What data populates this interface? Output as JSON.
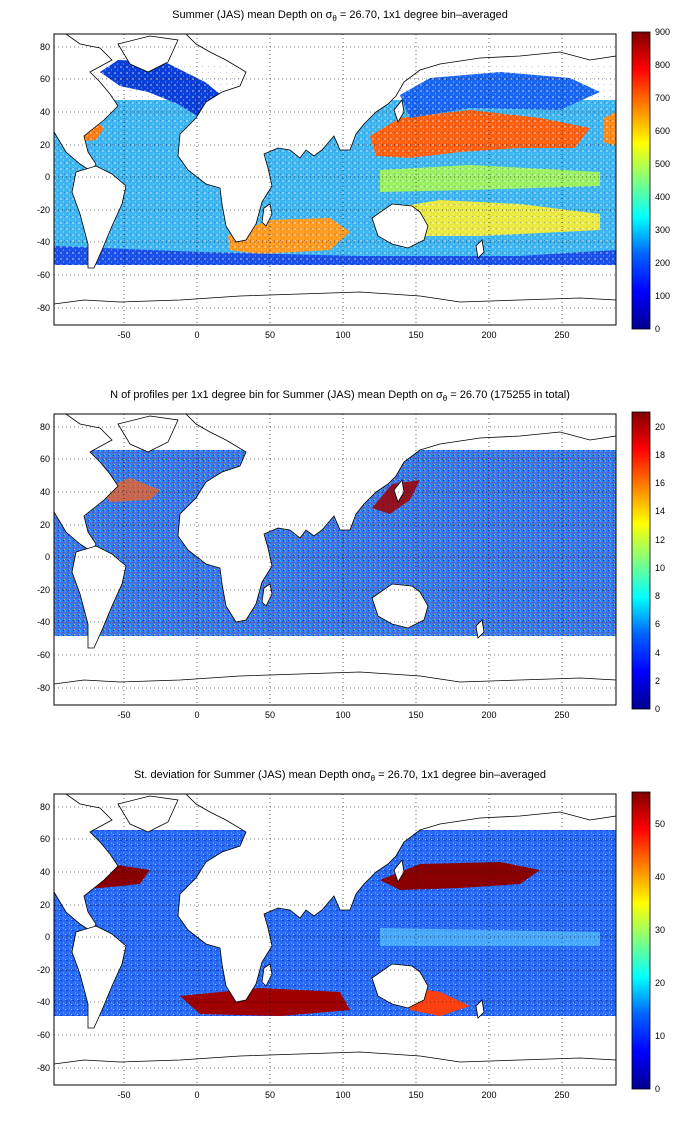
{
  "figure": {
    "panels": [
      {
        "id": "mean-depth",
        "title_main": "Summer (JAS) mean Depth on σ",
        "title_sub": "θ",
        "title_rest": " = 26.70, 1x1 degree bin–averaged",
        "colorbar": {
          "ticks": [
            "0",
            "100",
            "200",
            "300",
            "400",
            "500",
            "600",
            "700",
            "800",
            "900"
          ],
          "min": 0,
          "max": 900
        }
      },
      {
        "id": "profile-count",
        "title_main": "N of profiles per 1x1 degree bin for Summer (JAS) mean Depth on σ",
        "title_sub": "θ",
        "title_rest": " = 26.70 (175255 in total)",
        "colorbar": {
          "ticks": [
            "0",
            "2",
            "4",
            "6",
            "8",
            "10",
            "12",
            "14",
            "16",
            "18",
            "20"
          ],
          "min": 0,
          "max": 21
        }
      },
      {
        "id": "std-deviation",
        "title_main": "St. deviation for Summer (JAS) mean Depth onσ",
        "title_sub": "θ",
        "title_rest": " = 26.70, 1x1 degree bin–averaged",
        "colorbar": {
          "ticks": [
            "0",
            "10",
            "20",
            "30",
            "40",
            "50"
          ],
          "min": 0,
          "max": 56
        }
      }
    ],
    "map_axes": {
      "x_ticks": [
        "-50",
        "0",
        "50",
        "100",
        "150",
        "200",
        "250"
      ],
      "x_tick_values": [
        -50,
        0,
        50,
        100,
        150,
        200,
        250
      ],
      "y_ticks": [
        "80",
        "60",
        "40",
        "20",
        "0",
        "-20",
        "-40",
        "-60",
        "-80"
      ],
      "y_tick_values": [
        80,
        60,
        40,
        20,
        0,
        -20,
        -40,
        -60,
        -80
      ],
      "xlim": [
        -95,
        290
      ],
      "ylim": [
        -90,
        90
      ],
      "grid": "dotted"
    },
    "colormap": "jet",
    "colormap_stops": [
      "#00008f",
      "#0000ff",
      "#0080ff",
      "#00ffff",
      "#80ff80",
      "#ffff00",
      "#ff8000",
      "#ff0000",
      "#800000"
    ]
  }
}
